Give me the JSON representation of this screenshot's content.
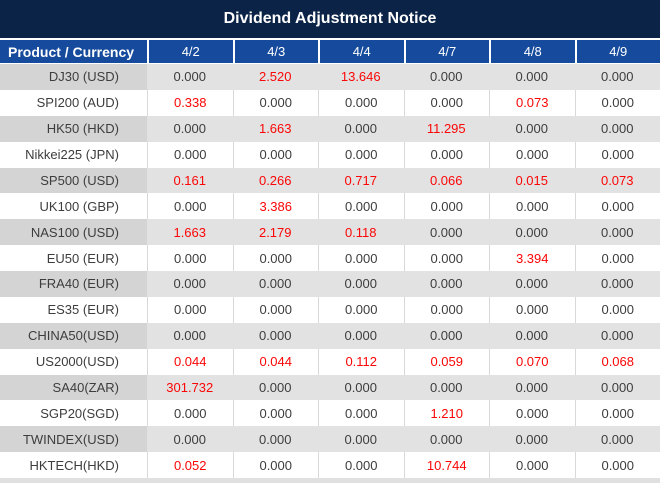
{
  "title": "Dividend Adjustment Notice",
  "colors": {
    "title_bg": "#0b2347",
    "header_bg": "#164a9c",
    "row_alt_bg": "#e2e2e2",
    "product_alt_bg": "#d4d4d4",
    "text_dark": "#3d3d3d",
    "highlight_red": "#fb0606"
  },
  "chart_data": {
    "type": "table",
    "title": "Dividend Adjustment Notice",
    "columns": [
      "Product / Currency",
      "4/2",
      "4/3",
      "4/4",
      "4/7",
      "4/8",
      "4/9"
    ],
    "rows": [
      {
        "product": "DJ30 (USD)",
        "values": [
          "0.000",
          "2.520",
          "13.646",
          "0.000",
          "0.000",
          "0.000"
        ],
        "red": [
          false,
          true,
          true,
          false,
          false,
          false
        ]
      },
      {
        "product": "SPI200 (AUD)",
        "values": [
          "0.338",
          "0.000",
          "0.000",
          "0.000",
          "0.073",
          "0.000"
        ],
        "red": [
          true,
          false,
          false,
          false,
          true,
          false
        ]
      },
      {
        "product": "HK50 (HKD)",
        "values": [
          "0.000",
          "1.663",
          "0.000",
          "11.295",
          "0.000",
          "0.000"
        ],
        "red": [
          false,
          true,
          false,
          true,
          false,
          false
        ]
      },
      {
        "product": "Nikkei225 (JPN)",
        "values": [
          "0.000",
          "0.000",
          "0.000",
          "0.000",
          "0.000",
          "0.000"
        ],
        "red": [
          false,
          false,
          false,
          false,
          false,
          false
        ]
      },
      {
        "product": "SP500 (USD)",
        "values": [
          "0.161",
          "0.266",
          "0.717",
          "0.066",
          "0.015",
          "0.073"
        ],
        "red": [
          true,
          true,
          true,
          true,
          true,
          true
        ]
      },
      {
        "product": "UK100 (GBP)",
        "values": [
          "0.000",
          "3.386",
          "0.000",
          "0.000",
          "0.000",
          "0.000"
        ],
        "red": [
          false,
          true,
          false,
          false,
          false,
          false
        ]
      },
      {
        "product": "NAS100 (USD)",
        "values": [
          "1.663",
          "2.179",
          "0.118",
          "0.000",
          "0.000",
          "0.000"
        ],
        "red": [
          true,
          true,
          true,
          false,
          false,
          false
        ]
      },
      {
        "product": "EU50 (EUR)",
        "values": [
          "0.000",
          "0.000",
          "0.000",
          "0.000",
          "3.394",
          "0.000"
        ],
        "red": [
          false,
          false,
          false,
          false,
          true,
          false
        ]
      },
      {
        "product": "FRA40 (EUR)",
        "values": [
          "0.000",
          "0.000",
          "0.000",
          "0.000",
          "0.000",
          "0.000"
        ],
        "red": [
          false,
          false,
          false,
          false,
          false,
          false
        ]
      },
      {
        "product": "ES35 (EUR)",
        "values": [
          "0.000",
          "0.000",
          "0.000",
          "0.000",
          "0.000",
          "0.000"
        ],
        "red": [
          false,
          false,
          false,
          false,
          false,
          false
        ]
      },
      {
        "product": "CHINA50(USD)",
        "values": [
          "0.000",
          "0.000",
          "0.000",
          "0.000",
          "0.000",
          "0.000"
        ],
        "red": [
          false,
          false,
          false,
          false,
          false,
          false
        ]
      },
      {
        "product": "US2000(USD)",
        "values": [
          "0.044",
          "0.044",
          "0.112",
          "0.059",
          "0.070",
          "0.068"
        ],
        "red": [
          true,
          true,
          true,
          true,
          true,
          true
        ]
      },
      {
        "product": "SA40(ZAR)",
        "values": [
          "301.732",
          "0.000",
          "0.000",
          "0.000",
          "0.000",
          "0.000"
        ],
        "red": [
          true,
          false,
          false,
          false,
          false,
          false
        ]
      },
      {
        "product": "SGP20(SGD)",
        "values": [
          "0.000",
          "0.000",
          "0.000",
          "1.210",
          "0.000",
          "0.000"
        ],
        "red": [
          false,
          false,
          false,
          true,
          false,
          false
        ]
      },
      {
        "product": "TWINDEX(USD)",
        "values": [
          "0.000",
          "0.000",
          "0.000",
          "0.000",
          "0.000",
          "0.000"
        ],
        "red": [
          false,
          false,
          false,
          false,
          false,
          false
        ]
      },
      {
        "product": "HKTECH(HKD)",
        "values": [
          "0.052",
          "0.000",
          "0.000",
          "10.744",
          "0.000",
          "0.000"
        ],
        "red": [
          true,
          false,
          false,
          true,
          false,
          false
        ]
      }
    ]
  }
}
